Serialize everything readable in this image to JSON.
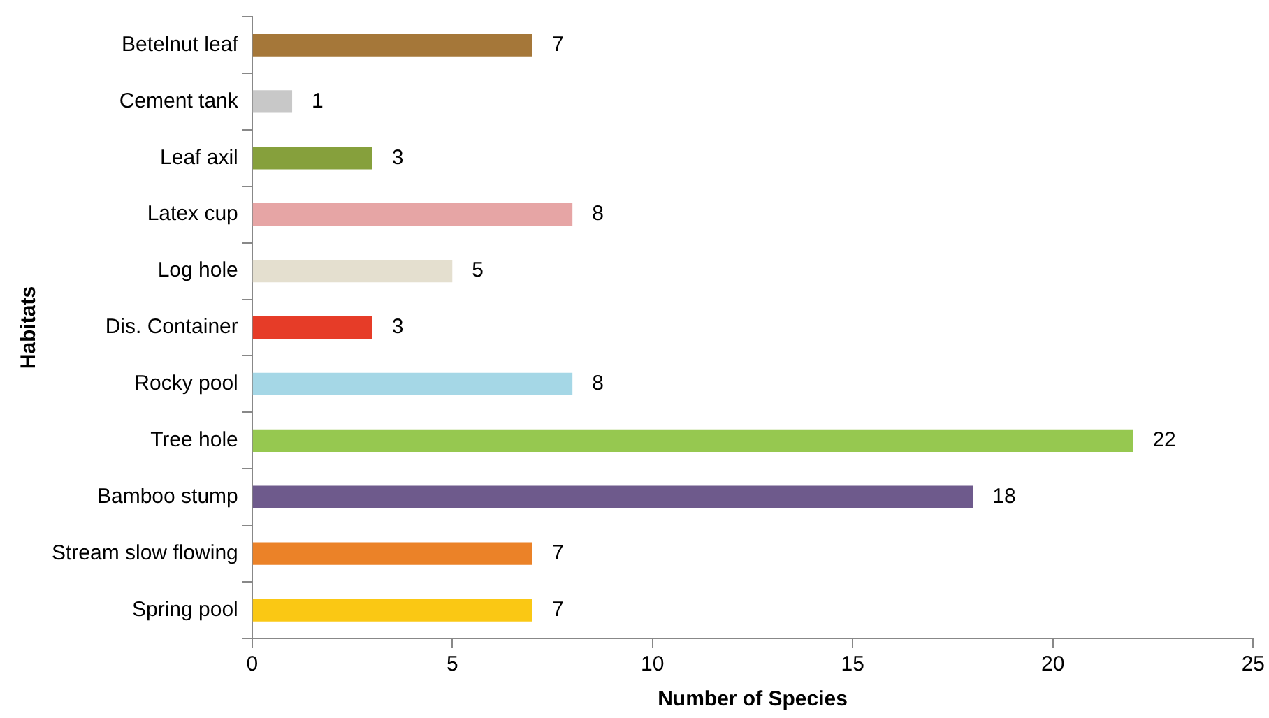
{
  "chart_data": {
    "type": "bar",
    "orientation": "horizontal",
    "xlabel": "Number of Species",
    "ylabel": "Habitats",
    "categories": [
      "Betelnut leaf",
      "Cement tank",
      "Leaf axil",
      "Latex cup",
      "Log hole",
      "Dis. Container",
      "Rocky pool",
      "Tree hole",
      "Bamboo stump",
      "Stream slow flowing",
      "Spring pool"
    ],
    "values": [
      7,
      1,
      3,
      8,
      5,
      3,
      8,
      22,
      18,
      7,
      7
    ],
    "colors": [
      "#a57739",
      "#c8c8c8",
      "#86a03c",
      "#e6a5a5",
      "#e4dfcf",
      "#e63c28",
      "#a5d7e6",
      "#96c850",
      "#6e5a8c",
      "#eb8228",
      "#fac814"
    ],
    "xlim": [
      0,
      25
    ],
    "xticks": [
      0,
      5,
      10,
      15,
      20,
      25
    ],
    "grid": false,
    "legend": false,
    "data_labels": true
  }
}
